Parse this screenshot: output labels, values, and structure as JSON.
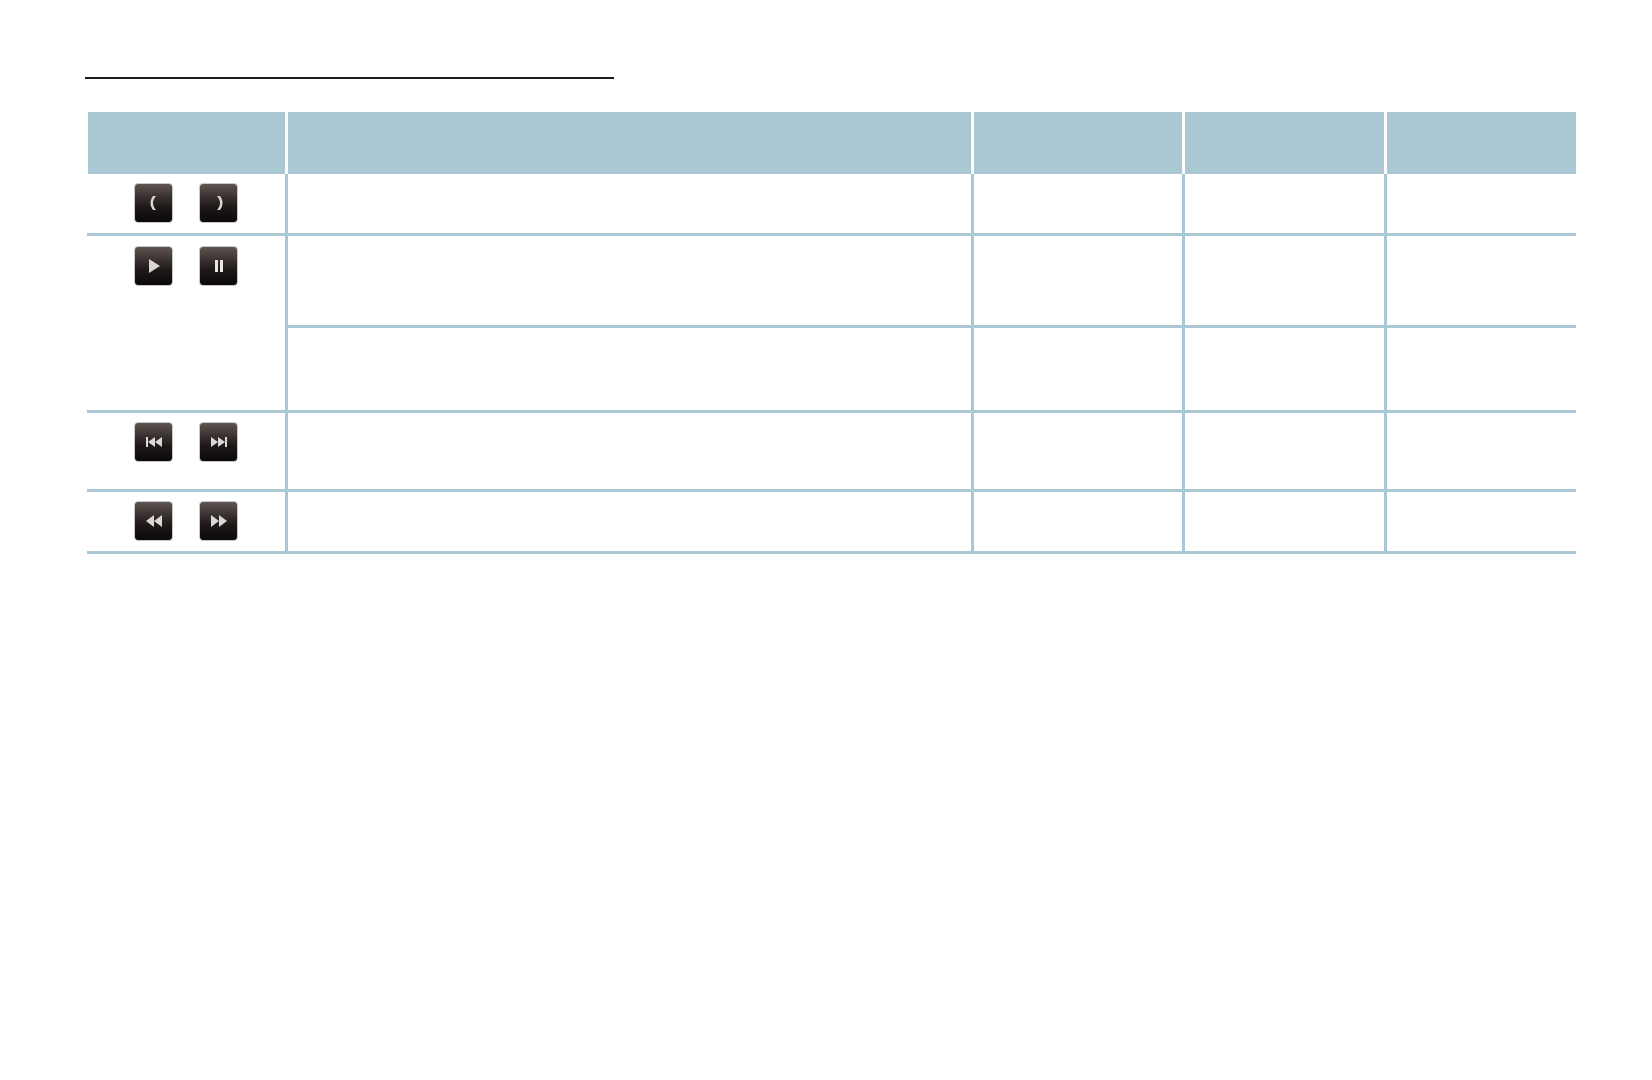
{
  "colors": {
    "header_fill": "#aac7d4",
    "grid_line": "#aac7d4",
    "rule": "#1a1a1a",
    "button_fill": "#1e1817",
    "icon_glyph": "#d8d8d8"
  },
  "table": {
    "headers": [
      "",
      "",
      "",
      "",
      ""
    ],
    "rows": [
      {
        "icons": [
          "chevron-left-icon",
          "chevron-right-icon"
        ],
        "cells": [
          "",
          "",
          "",
          ""
        ]
      },
      {
        "icons": [
          "play-icon",
          "pause-icon"
        ],
        "cells": [
          "",
          "",
          "",
          ""
        ]
      },
      {
        "icons": [],
        "cells": [
          "",
          "",
          "",
          ""
        ]
      },
      {
        "icons": [
          "skip-previous-icon",
          "skip-next-icon"
        ],
        "cells": [
          "",
          "",
          "",
          ""
        ]
      },
      {
        "icons": [
          "rewind-icon",
          "fast-forward-icon"
        ],
        "cells": [
          "",
          "",
          "",
          ""
        ]
      }
    ]
  }
}
